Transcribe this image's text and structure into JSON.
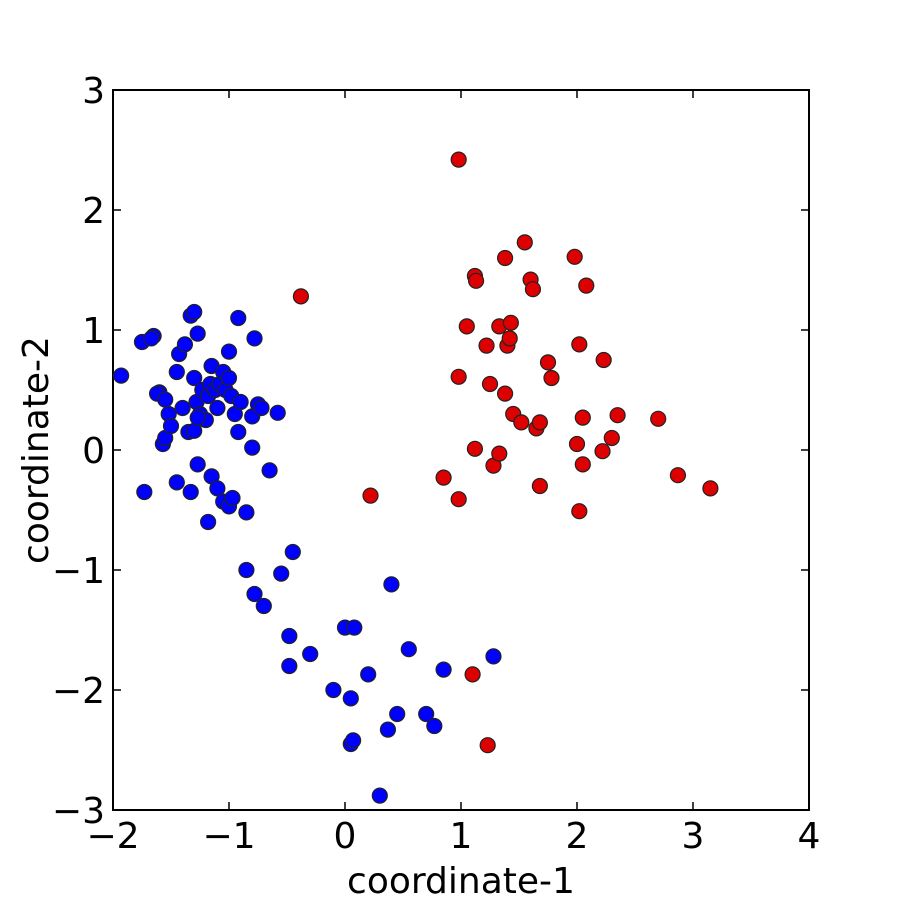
{
  "chart_data": {
    "type": "scatter",
    "title": "",
    "xlabel": "coordinate-1",
    "ylabel": "coordinate-2",
    "xlim": [
      -2,
      4
    ],
    "ylim": [
      -3,
      3
    ],
    "xticks": [
      -2,
      -1,
      0,
      1,
      2,
      3,
      4
    ],
    "yticks": [
      -3,
      -2,
      -1,
      0,
      1,
      2,
      3
    ],
    "xtick_labels": [
      "−2",
      "−1",
      "0",
      "1",
      "2",
      "3",
      "4"
    ],
    "ytick_labels": [
      "−3",
      "−2",
      "−1",
      "0",
      "1",
      "2",
      "3"
    ],
    "grid": false,
    "legend": "none",
    "series": [
      {
        "color": "#0000ff",
        "marker": "circle",
        "points": [
          [
            -1.93,
            0.62
          ],
          [
            -1.75,
            0.9
          ],
          [
            -1.65,
            0.95
          ],
          [
            -1.67,
            0.93
          ],
          [
            -1.73,
            -0.35
          ],
          [
            -1.6,
            0.48
          ],
          [
            -1.62,
            0.47
          ],
          [
            -1.55,
            0.42
          ],
          [
            -1.57,
            0.05
          ],
          [
            -1.55,
            0.1
          ],
          [
            -1.52,
            0.3
          ],
          [
            -1.5,
            0.2
          ],
          [
            -1.45,
            0.65
          ],
          [
            -1.43,
            0.8
          ],
          [
            -1.4,
            0.35
          ],
          [
            -1.38,
            0.88
          ],
          [
            -1.35,
            0.15
          ],
          [
            -1.33,
            1.12
          ],
          [
            -1.3,
            1.15
          ],
          [
            -1.3,
            0.6
          ],
          [
            -1.28,
            0.4
          ],
          [
            -1.25,
            0.3
          ],
          [
            -1.23,
            0.5
          ],
          [
            -1.2,
            0.25
          ],
          [
            -1.18,
            0.45
          ],
          [
            -1.16,
            0.55
          ],
          [
            -1.15,
            0.7
          ],
          [
            -1.12,
            0.5
          ],
          [
            -1.1,
            0.35
          ],
          [
            -1.08,
            0.55
          ],
          [
            -1.05,
            0.65
          ],
          [
            -1.03,
            0.5
          ],
          [
            -1.0,
            0.6
          ],
          [
            -0.98,
            0.45
          ],
          [
            -0.95,
            0.3
          ],
          [
            -0.92,
            0.15
          ],
          [
            -0.9,
            0.4
          ],
          [
            -0.8,
            0.28
          ],
          [
            -0.75,
            0.38
          ],
          [
            -0.72,
            0.35
          ],
          [
            -0.58,
            0.31
          ],
          [
            -1.27,
            0.97
          ],
          [
            -1.0,
            0.82
          ],
          [
            -0.92,
            1.1
          ],
          [
            -0.78,
            0.93
          ],
          [
            -1.3,
            0.16
          ],
          [
            -1.27,
            0.27
          ],
          [
            -1.45,
            -0.27
          ],
          [
            -1.33,
            -0.35
          ],
          [
            -1.27,
            -0.12
          ],
          [
            -1.15,
            -0.22
          ],
          [
            -1.1,
            -0.32
          ],
          [
            -1.05,
            -0.43
          ],
          [
            -1.0,
            -0.47
          ],
          [
            -0.97,
            -0.4
          ],
          [
            -1.18,
            -0.6
          ],
          [
            -0.85,
            -0.52
          ],
          [
            -0.8,
            0.02
          ],
          [
            -0.65,
            -0.17
          ],
          [
            -0.85,
            -1.0
          ],
          [
            -0.78,
            -1.2
          ],
          [
            -0.7,
            -1.3
          ],
          [
            -0.55,
            -1.03
          ],
          [
            -0.45,
            -0.85
          ],
          [
            -0.48,
            -1.55
          ],
          [
            -0.48,
            -1.8
          ],
          [
            -0.3,
            -1.7
          ],
          [
            -0.1,
            -2.0
          ],
          [
            0.0,
            -1.48
          ],
          [
            0.08,
            -1.48
          ],
          [
            0.05,
            -2.07
          ],
          [
            0.2,
            -1.87
          ],
          [
            0.05,
            -2.45
          ],
          [
            0.07,
            -2.42
          ],
          [
            0.37,
            -2.33
          ],
          [
            0.45,
            -2.2
          ],
          [
            0.3,
            -2.88
          ],
          [
            0.4,
            -1.12
          ],
          [
            0.55,
            -1.66
          ],
          [
            0.7,
            -2.2
          ],
          [
            0.77,
            -2.3
          ],
          [
            0.85,
            -1.83
          ],
          [
            1.28,
            -1.72
          ]
        ]
      },
      {
        "color": "#dd0000",
        "marker": "circle",
        "points": [
          [
            0.98,
            2.42
          ],
          [
            -0.38,
            1.28
          ],
          [
            0.22,
            -0.38
          ],
          [
            0.85,
            -0.23
          ],
          [
            0.98,
            -0.41
          ],
          [
            0.98,
            0.61
          ],
          [
            1.05,
            1.03
          ],
          [
            1.12,
            1.45
          ],
          [
            1.13,
            1.41
          ],
          [
            1.12,
            0.01
          ],
          [
            1.22,
            0.87
          ],
          [
            1.25,
            0.55
          ],
          [
            1.28,
            -0.13
          ],
          [
            1.33,
            -0.03
          ],
          [
            1.33,
            1.03
          ],
          [
            1.38,
            1.6
          ],
          [
            1.4,
            0.87
          ],
          [
            1.42,
            0.93
          ],
          [
            1.43,
            1.06
          ],
          [
            1.38,
            0.47
          ],
          [
            1.45,
            0.3
          ],
          [
            1.52,
            0.23
          ],
          [
            1.55,
            1.73
          ],
          [
            1.6,
            1.42
          ],
          [
            1.62,
            1.34
          ],
          [
            1.65,
            0.18
          ],
          [
            1.68,
            0.23
          ],
          [
            1.68,
            -0.3
          ],
          [
            1.75,
            0.73
          ],
          [
            1.78,
            0.6
          ],
          [
            1.98,
            1.61
          ],
          [
            2.0,
            0.05
          ],
          [
            2.02,
            0.88
          ],
          [
            2.05,
            0.27
          ],
          [
            2.05,
            -0.12
          ],
          [
            2.02,
            -0.51
          ],
          [
            2.08,
            1.37
          ],
          [
            2.22,
            -0.01
          ],
          [
            2.23,
            0.75
          ],
          [
            2.3,
            0.1
          ],
          [
            2.35,
            0.29
          ],
          [
            2.7,
            0.26
          ],
          [
            2.87,
            -0.21
          ],
          [
            3.15,
            -0.32
          ],
          [
            1.1,
            -1.87
          ],
          [
            1.23,
            -2.46
          ]
        ]
      }
    ]
  }
}
